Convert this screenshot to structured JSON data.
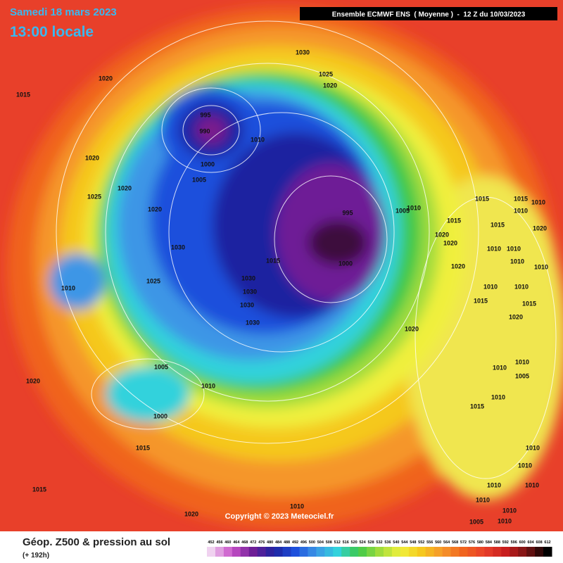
{
  "header": {
    "date": "Samedi 18 mars 2023",
    "time": "13:00 locale",
    "model": "Ensemble ECMWF ENS  ( Moyenne )  -  12 Z du 10/03/2023"
  },
  "map": {
    "isobar_labels": [
      "1030",
      "1025",
      "1020",
      "1020",
      "1015",
      "995",
      "990",
      "1010",
      "1000",
      "1020",
      "1005",
      "1025",
      "1020",
      "1020",
      "995",
      "1005",
      "1010",
      "1015",
      "1015",
      "1010",
      "1010",
      "1015",
      "1015",
      "1020",
      "1020",
      "1020",
      "1030",
      "1015",
      "1000",
      "1010",
      "1010",
      "1020",
      "1010",
      "1010",
      "1010",
      "1025",
      "1030",
      "1030",
      "1030",
      "1030",
      "1010",
      "1010",
      "1015",
      "1015",
      "1020",
      "1020",
      "1005",
      "1010",
      "1010",
      "1010",
      "1005",
      "1020",
      "1010",
      "1015",
      "1000",
      "1015",
      "1010",
      "1010",
      "1015",
      "1010",
      "1010",
      "1020",
      "1010",
      "1010",
      "1005",
      "1010",
      "1010"
    ],
    "copyright": "Copyright © 2023 Meteociel.fr"
  },
  "legend": {
    "title": "Géop. Z500 & pression au sol",
    "lead": "(+ 192h)",
    "scale": [
      452,
      456,
      460,
      464,
      468,
      472,
      476,
      480,
      484,
      488,
      492,
      496,
      500,
      504,
      508,
      512,
      516,
      520,
      524,
      528,
      532,
      536,
      540,
      544,
      548,
      552,
      556,
      560,
      564,
      568,
      572,
      576,
      580,
      584,
      588,
      592,
      596,
      600,
      604,
      608,
      612
    ]
  }
}
